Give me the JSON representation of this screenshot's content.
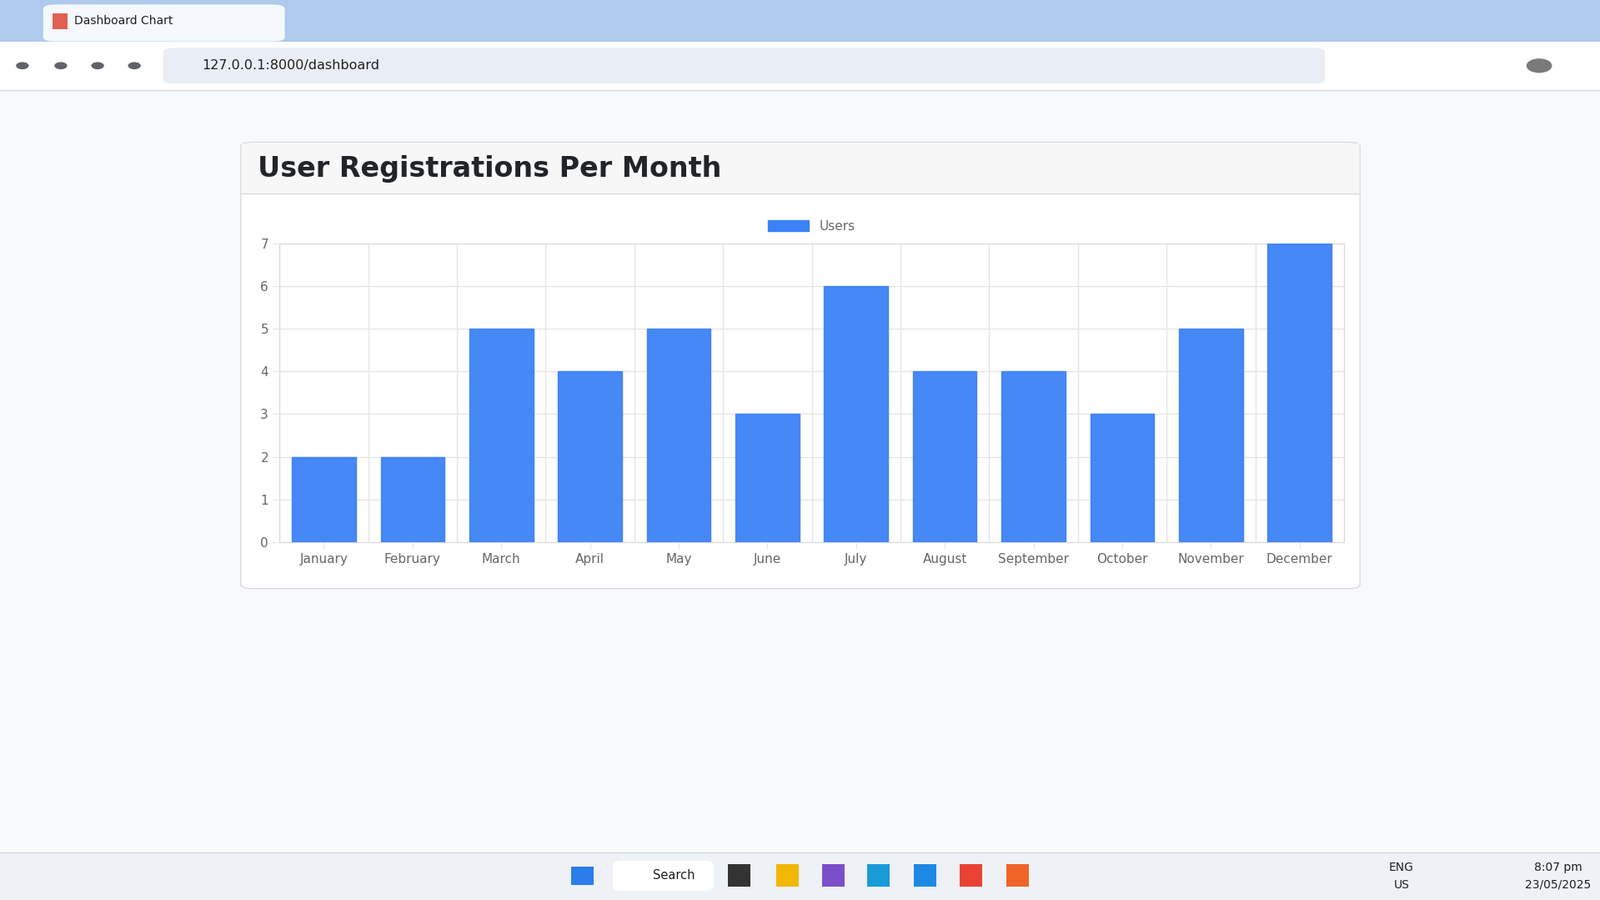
{
  "browser": {
    "tab_title": "Dashboard Chart",
    "url": "127.0.0.1:8000/dashboard"
  },
  "chart_data": {
    "type": "bar",
    "title": "User Registrations Per Month",
    "categories": [
      "January",
      "February",
      "March",
      "April",
      "May",
      "June",
      "July",
      "August",
      "September",
      "October",
      "November",
      "December"
    ],
    "series": [
      {
        "name": "Users",
        "color": "#3b82f6",
        "values": [
          2,
          2,
          5,
          4,
          5,
          3,
          6,
          4,
          4,
          3,
          5,
          7
        ]
      }
    ],
    "ylim": [
      0,
      7
    ],
    "yticks": [
      0,
      1,
      2,
      3,
      4,
      5,
      6,
      7
    ],
    "grid": true,
    "legend": "top"
  },
  "taskbar": {
    "search": "Search",
    "language": [
      "ENG",
      "US"
    ],
    "time": "8:07 pm",
    "date": "23/05/2025"
  }
}
